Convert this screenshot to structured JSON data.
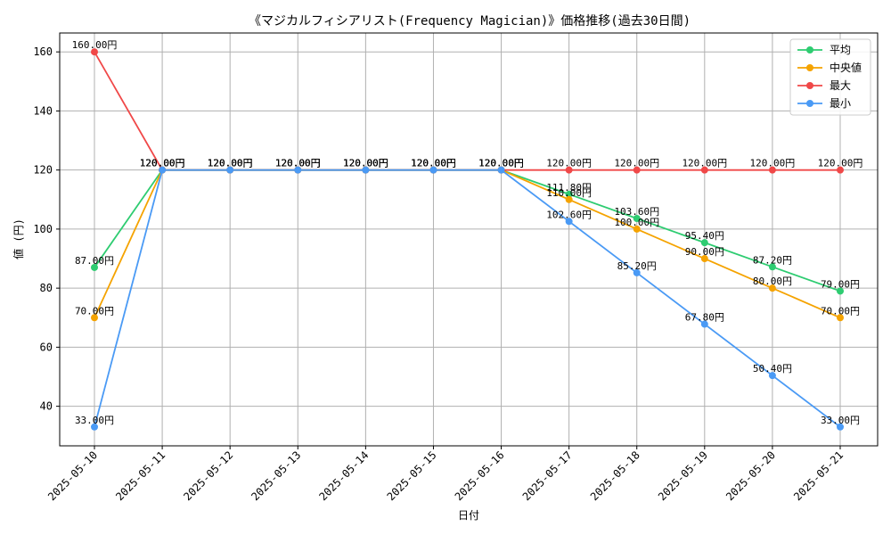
{
  "chart_data": {
    "type": "line",
    "title": "《マジカルフィシアリスト(Frequency Magician)》価格推移(過去30日間)",
    "xlabel": "日付",
    "ylabel": "値 (円)",
    "ylim": [
      26.6,
      166.4
    ],
    "yticks": [
      40,
      60,
      80,
      100,
      120,
      140,
      160
    ],
    "grid": true,
    "legend_position": "top-right",
    "categories": [
      "2025-05-10",
      "2025-05-11",
      "2025-05-12",
      "2025-05-13",
      "2025-05-14",
      "2025-05-15",
      "2025-05-16",
      "2025-05-17",
      "2025-05-18",
      "2025-05-19",
      "2025-05-20",
      "2025-05-21"
    ],
    "series": [
      {
        "name": "平均",
        "color": "#2ecc71",
        "values": [
          87.0,
          120.0,
          120.0,
          120.0,
          120.0,
          120.0,
          120.0,
          111.8,
          103.6,
          95.4,
          87.2,
          79.0
        ],
        "labels": [
          "87.00円",
          "120.00円",
          "120.00円",
          "120.00円",
          "120.00円",
          "120.00円",
          "120.00円",
          "111.80円",
          "103.60円",
          "95.40円",
          "87.20円",
          "79.00円"
        ]
      },
      {
        "name": "中央値",
        "color": "#f5a300",
        "values": [
          70.0,
          120.0,
          120.0,
          120.0,
          120.0,
          120.0,
          120.0,
          110.0,
          100.0,
          90.0,
          80.0,
          70.0
        ],
        "labels": [
          "70.00円",
          "120.00円",
          "120.00円",
          "120.00円",
          "120.00円",
          "120.00円",
          "120.00円",
          "110.00円",
          "100.00円",
          "90.00円",
          "80.00円",
          "70.00円"
        ]
      },
      {
        "name": "最大",
        "color": "#f04848",
        "values": [
          160.0,
          120.0,
          120.0,
          120.0,
          120.0,
          120.0,
          120.0,
          120.0,
          120.0,
          120.0,
          120.0,
          120.0
        ],
        "labels": [
          "160.00円",
          "120.00円",
          "120.00円",
          "120.00円",
          "120.00円",
          "120.00円",
          "120.00円",
          "120.00円",
          "120.00円",
          "120.00円",
          "120.00円",
          "120.00円"
        ]
      },
      {
        "name": "最小",
        "color": "#4a9af5",
        "values": [
          33.0,
          120.0,
          120.0,
          120.0,
          120.0,
          120.0,
          120.0,
          102.6,
          85.2,
          67.8,
          50.4,
          33.0
        ],
        "labels": [
          "33.00円",
          "120.00円",
          "120.00円",
          "120.00円",
          "120.00円",
          "120.00円",
          "120.00円",
          "102.60円",
          "85.20円",
          "67.80円",
          "50.40円",
          "33.00円"
        ]
      }
    ]
  }
}
